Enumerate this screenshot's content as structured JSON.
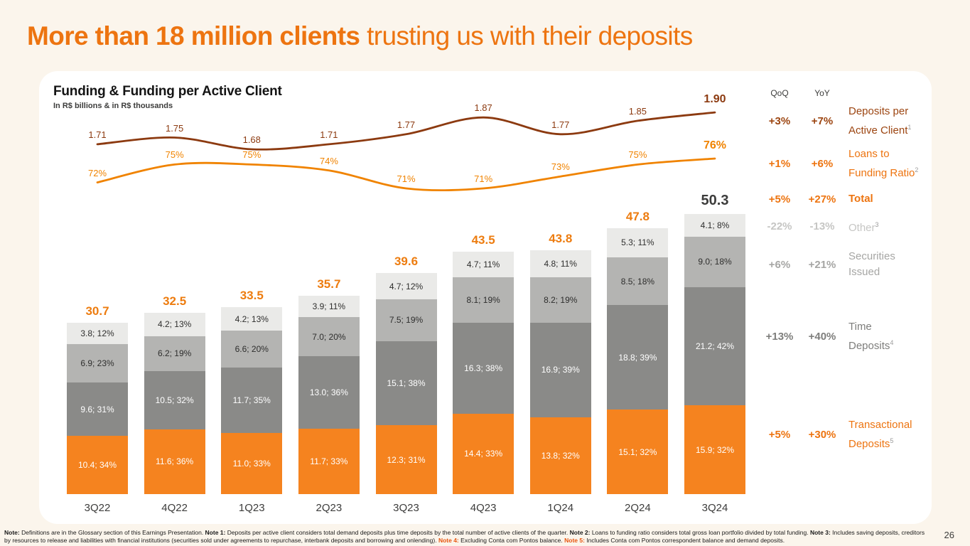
{
  "page": {
    "title_emphasis": "More than 18 million clients",
    "title_rest": " trusting us with their deposits",
    "page_number": "26"
  },
  "chart_data": {
    "type": "bar",
    "stacked": true,
    "title": "Funding & Funding per Active Client",
    "subtitle": "In R$ billions & in R$ thousands",
    "categories": [
      "3Q22",
      "4Q22",
      "1Q23",
      "2Q23",
      "3Q23",
      "4Q23",
      "1Q24",
      "2Q24",
      "3Q24"
    ],
    "bars": {
      "totals": [
        "30.7",
        "32.5",
        "33.5",
        "35.7",
        "39.6",
        "43.5",
        "43.8",
        "47.8",
        "50.3"
      ],
      "series": [
        {
          "id": "transactional-deposits",
          "name": "Transactional Deposits",
          "color": "#F5831F",
          "text_color": "#FFFFFF",
          "values": [
            10.4,
            11.6,
            11.0,
            11.7,
            12.3,
            14.4,
            13.8,
            15.1,
            15.9
          ],
          "labels": [
            "10.4; 34%",
            "11.6; 36%",
            "11.0; 33%",
            "11.7; 33%",
            "12.3; 31%",
            "14.4; 33%",
            "13.8; 32%",
            "15.1; 32%",
            "15.9; 32%"
          ]
        },
        {
          "id": "time-deposits",
          "name": "Time Deposits",
          "color": "#8A8A88",
          "text_color": "#FFFFFF",
          "values": [
            9.6,
            10.5,
            11.7,
            13.0,
            15.1,
            16.3,
            16.9,
            18.8,
            21.2
          ],
          "labels": [
            "9.6; 31%",
            "10.5; 32%",
            "11.7; 35%",
            "13.0; 36%",
            "15.1; 38%",
            "16.3; 38%",
            "16.9; 39%",
            "18.8; 39%",
            "21.2; 42%"
          ]
        },
        {
          "id": "securities-issued",
          "name": "Securities Issued",
          "color": "#B4B4B2",
          "text_color": "#2E2E2D",
          "values": [
            6.9,
            6.2,
            6.6,
            7.0,
            7.5,
            8.1,
            8.2,
            8.5,
            9.0
          ],
          "labels": [
            "6.9; 23%",
            "6.2; 19%",
            "6.6; 20%",
            "7.0; 20%",
            "7.5; 19%",
            "8.1; 19%",
            "8.2; 19%",
            "8.5; 18%",
            "9.0; 18%"
          ]
        },
        {
          "id": "other",
          "name": "Other",
          "color": "#EAEAE8",
          "text_color": "#2E2E2D",
          "values": [
            3.8,
            4.2,
            4.2,
            3.9,
            4.7,
            4.7,
            4.8,
            5.3,
            4.1
          ],
          "labels": [
            "3.8; 12%",
            "4.2; 13%",
            "4.2; 13%",
            "3.9; 11%",
            "4.7; 12%",
            "4.7; 11%",
            "4.8; 11%",
            "5.3; 11%",
            "4.1; 8%"
          ]
        }
      ]
    },
    "lines": [
      {
        "id": "deposits-per-active-client",
        "name": "Deposits per Active Client",
        "unit": "R$ thousands",
        "color": "#8C3A10",
        "values": [
          1.71,
          1.75,
          1.68,
          1.71,
          1.77,
          1.87,
          1.77,
          1.85,
          1.9
        ],
        "labels": [
          "1.71",
          "1.75",
          "1.68",
          "1.71",
          "1.77",
          "1.87",
          "1.77",
          "1.85",
          "1.90"
        ]
      },
      {
        "id": "loans-to-funding-ratio",
        "name": "Loans to Funding Ratio",
        "unit": "%",
        "color": "#F08300",
        "values": [
          72,
          75,
          75,
          74,
          71,
          71,
          73,
          75,
          76
        ],
        "labels": [
          "72%",
          "75%",
          "75%",
          "74%",
          "71%",
          "71%",
          "73%",
          "75%",
          "76%"
        ]
      }
    ]
  },
  "summary": {
    "qoq_header": "QoQ",
    "yoy_header": "YoY",
    "rows": [
      {
        "id": "deposits-per-active-client",
        "qoq": "+3%",
        "yoy": "+7%",
        "label": "Deposits per\nActive Client",
        "sup": "1",
        "color": "#9C4511",
        "bold": false
      },
      {
        "id": "loans-to-funding-ratio",
        "qoq": "+1%",
        "yoy": "+6%",
        "label": "Loans to\nFunding Ratio",
        "sup": "2",
        "color": "#ED7410",
        "bold": false
      },
      {
        "id": "total",
        "qoq": "+5%",
        "yoy": "+27%",
        "label": "Total",
        "sup": "",
        "color": "#ED7410",
        "bold": true
      },
      {
        "id": "other",
        "qoq": "-22%",
        "yoy": "-13%",
        "label": "Other",
        "sup": "3",
        "color": "#C6C6C4",
        "bold": false
      },
      {
        "id": "securities-issued",
        "qoq": "+6%",
        "yoy": "+21%",
        "label": "Securities\nIssued",
        "sup": "",
        "color": "#A6A6A4",
        "bold": false
      },
      {
        "id": "time-deposits",
        "qoq": "+13%",
        "yoy": "+40%",
        "label": "Time\nDeposits",
        "sup": "4",
        "color": "#7E7E7C",
        "bold": false
      },
      {
        "id": "transactional-deposits",
        "qoq": "+5%",
        "yoy": "+30%",
        "label": "Transactional\nDeposits",
        "sup": "5",
        "color": "#ED7410",
        "bold": false
      }
    ]
  },
  "footnote": {
    "segments": [
      {
        "bold": true,
        "accent": false,
        "text": "Note:"
      },
      {
        "bold": false,
        "accent": false,
        "text": " Definitions are in the Glossary section of this Earnings Presentation. "
      },
      {
        "bold": true,
        "accent": false,
        "text": "Note 1:"
      },
      {
        "bold": false,
        "accent": false,
        "text": " Deposits per active client considers total demand deposits plus time deposits by the total number of active clients of the quarter. "
      },
      {
        "bold": true,
        "accent": false,
        "text": "Note 2:"
      },
      {
        "bold": false,
        "accent": false,
        "text": " Loans to funding ratio considers total gross loan portfolio divided by total funding. "
      },
      {
        "bold": true,
        "accent": false,
        "text": "Note 3:"
      },
      {
        "bold": false,
        "accent": false,
        "text": " Includes saving deposits, creditors by resources to release and liabilities with financial institutions (securities sold under agreements to repurchase, interbank deposits and borrowing and onlending). "
      },
      {
        "bold": true,
        "accent": true,
        "text": "Note 4:"
      },
      {
        "bold": false,
        "accent": false,
        "text": " Excluding Conta com Pontos balance. "
      },
      {
        "bold": true,
        "accent": true,
        "text": "Note 5:"
      },
      {
        "bold": false,
        "accent": false,
        "text": " Includes Conta com Pontos correspondent balance and demand deposits."
      }
    ]
  }
}
